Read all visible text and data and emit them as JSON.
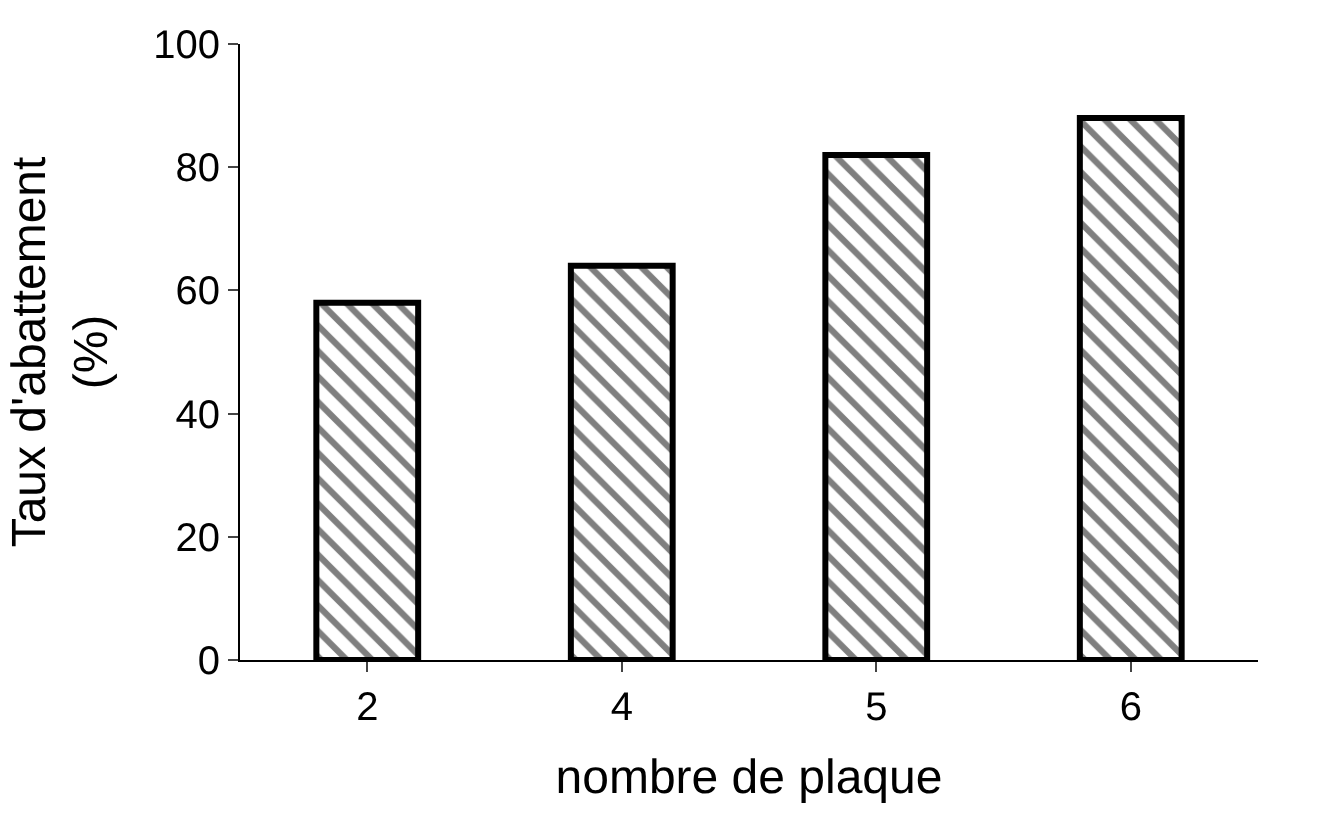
{
  "chart_data": {
    "type": "bar",
    "xlabel": "nombre de plaque",
    "ylabel": "Taux d'abattement (%)",
    "categories": [
      "2",
      "4",
      "5",
      "6"
    ],
    "values": [
      58,
      64,
      82,
      88
    ],
    "ylim": [
      0,
      100
    ],
    "yticks": [
      0,
      20,
      40,
      60,
      80,
      100
    ]
  }
}
